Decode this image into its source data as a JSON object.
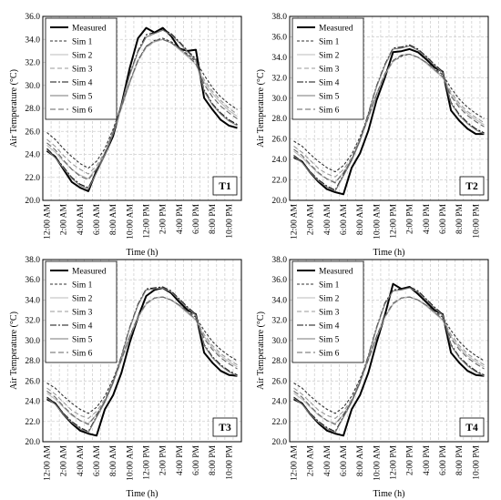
{
  "chart_data": [
    {
      "type": "line",
      "panel_label": "T1",
      "xlabel": "Time (h)",
      "ylabel": "Air Temperature (°C)",
      "ylim": [
        20.0,
        36.0
      ],
      "yticks": [
        "20.0",
        "22.0",
        "24.0",
        "26.0",
        "28.0",
        "30.0",
        "32.0",
        "34.0",
        "36.0"
      ],
      "xtick_labels": [
        "12:00 AM",
        "2:00 AM",
        "4:00 AM",
        "6:00 AM",
        "8:00 AM",
        "10:00 AM",
        "12:00 PM",
        "2:00 PM",
        "4:00 PM",
        "6:00 PM",
        "8:00 PM",
        "10:00 PM"
      ],
      "x_hours": [
        0,
        1,
        2,
        3,
        4,
        5,
        6,
        7,
        8,
        9,
        10,
        11,
        12,
        13,
        14,
        15,
        16,
        17,
        18,
        19,
        20,
        21,
        22,
        23
      ],
      "grid": true,
      "legend_position": "top-left",
      "series": [
        {
          "name": "Measured",
          "style": "measured",
          "values": [
            24.3,
            23.8,
            22.7,
            21.6,
            21.1,
            20.8,
            22.6,
            24.0,
            25.6,
            28.3,
            31.5,
            34.1,
            35.0,
            34.6,
            35.0,
            34.3,
            33.2,
            33.0,
            33.1,
            28.9,
            27.9,
            27.0,
            26.5,
            26.3
          ]
        },
        {
          "name": "Sim 1",
          "style": "sim1",
          "values": [
            25.9,
            25.3,
            24.5,
            23.8,
            23.2,
            22.8,
            23.4,
            24.5,
            26.2,
            28.2,
            30.3,
            32.2,
            33.4,
            33.9,
            34.1,
            33.8,
            33.3,
            32.7,
            32.1,
            30.9,
            29.8,
            29.0,
            28.4,
            27.9
          ]
        },
        {
          "name": "Sim 2",
          "style": "sim2",
          "values": [
            24.8,
            24.2,
            23.4,
            22.7,
            22.2,
            21.9,
            22.8,
            24.0,
            25.8,
            28.0,
            30.2,
            32.1,
            33.3,
            33.8,
            34.0,
            33.7,
            33.1,
            32.5,
            31.8,
            30.3,
            29.3,
            28.5,
            27.8,
            27.3
          ]
        },
        {
          "name": "Sim 3",
          "style": "sim3",
          "values": [
            25.3,
            24.7,
            23.9,
            23.2,
            22.7,
            22.3,
            23.0,
            24.2,
            26.0,
            28.1,
            30.2,
            32.1,
            33.3,
            33.8,
            34.0,
            33.7,
            33.2,
            32.6,
            31.9,
            30.5,
            29.5,
            28.7,
            28.0,
            27.5
          ]
        },
        {
          "name": "Sim 4",
          "style": "sim4",
          "values": [
            24.5,
            23.8,
            22.9,
            22.0,
            21.4,
            21.1,
            22.5,
            24.0,
            25.9,
            28.4,
            31.0,
            33.0,
            34.4,
            34.6,
            34.9,
            34.5,
            33.8,
            33.0,
            32.3,
            29.6,
            28.4,
            27.6,
            27.0,
            26.6
          ]
        },
        {
          "name": "Sim 5",
          "style": "sim5",
          "values": [
            24.4,
            23.7,
            22.8,
            21.9,
            21.3,
            21.0,
            22.4,
            23.9,
            25.8,
            28.3,
            30.9,
            32.9,
            34.2,
            34.5,
            34.8,
            34.4,
            33.7,
            32.9,
            32.2,
            29.5,
            28.3,
            27.5,
            26.9,
            26.5
          ]
        },
        {
          "name": "Sim 6",
          "style": "sim6",
          "values": [
            25.0,
            24.4,
            23.5,
            22.7,
            22.1,
            21.8,
            22.7,
            24.0,
            25.9,
            28.1,
            30.3,
            32.2,
            33.4,
            33.9,
            34.0,
            33.7,
            33.2,
            32.6,
            31.9,
            30.1,
            29.0,
            28.2,
            27.6,
            27.1
          ]
        }
      ]
    },
    {
      "type": "line",
      "panel_label": "T2",
      "xlabel": "Time (h)",
      "ylabel": "Air Temperature (°C)",
      "ylim": [
        20.0,
        38.0
      ],
      "yticks": [
        "20.0",
        "22.0",
        "24.0",
        "26.0",
        "28.0",
        "30.0",
        "32.0",
        "34.0",
        "36.0",
        "38.0"
      ],
      "xtick_labels": [
        "12:00 AM",
        "2:00 AM",
        "4:00 AM",
        "6:00 AM",
        "8:00 AM",
        "10:00 AM",
        "12:00 PM",
        "2:00 PM",
        "4:00 PM",
        "6:00 PM",
        "8:00 PM",
        "10:00 PM"
      ],
      "x_hours": [
        0,
        1,
        2,
        3,
        4,
        5,
        6,
        7,
        8,
        9,
        10,
        11,
        12,
        13,
        14,
        15,
        16,
        17,
        18,
        19,
        20,
        21,
        22,
        23
      ],
      "grid": true,
      "legend_position": "top-left",
      "series": [
        {
          "name": "Measured",
          "style": "measured",
          "values": [
            24.2,
            23.8,
            22.7,
            21.8,
            21.1,
            20.8,
            20.6,
            23.2,
            24.6,
            26.8,
            29.8,
            32.0,
            34.5,
            34.6,
            34.8,
            34.5,
            33.8,
            33.0,
            32.6,
            28.8,
            27.8,
            27.0,
            26.5,
            26.5
          ]
        },
        {
          "name": "Sim 1",
          "style": "sim1",
          "values": [
            25.8,
            25.3,
            24.5,
            23.8,
            23.2,
            22.8,
            23.4,
            24.5,
            26.2,
            28.2,
            30.4,
            32.3,
            33.6,
            34.1,
            34.3,
            34.0,
            33.5,
            32.9,
            32.3,
            31.0,
            29.9,
            29.1,
            28.5,
            28.0
          ]
        },
        {
          "name": "Sim 2",
          "style": "sim2",
          "values": [
            24.8,
            24.2,
            23.4,
            22.6,
            22.1,
            21.8,
            22.7,
            24.0,
            25.8,
            28.0,
            30.3,
            32.3,
            33.6,
            34.2,
            34.3,
            34.0,
            33.4,
            32.7,
            32.0,
            30.4,
            29.3,
            28.5,
            27.9,
            27.4
          ]
        },
        {
          "name": "Sim 3",
          "style": "sim3",
          "values": [
            25.3,
            24.7,
            23.9,
            23.1,
            22.6,
            22.3,
            23.0,
            24.2,
            26.0,
            28.1,
            30.3,
            32.3,
            33.6,
            34.2,
            34.3,
            34.0,
            33.5,
            32.8,
            32.1,
            30.6,
            29.5,
            28.7,
            28.1,
            27.6
          ]
        },
        {
          "name": "Sim 4",
          "style": "sim4",
          "values": [
            24.4,
            23.8,
            22.8,
            22.0,
            21.4,
            21.0,
            22.5,
            24.0,
            25.9,
            28.5,
            31.2,
            33.3,
            34.9,
            35.0,
            35.2,
            34.8,
            34.1,
            33.3,
            32.6,
            29.6,
            28.4,
            27.6,
            27.0,
            26.6
          ]
        },
        {
          "name": "Sim 5",
          "style": "sim5",
          "values": [
            24.3,
            23.7,
            22.7,
            21.9,
            21.3,
            20.9,
            22.4,
            23.9,
            25.8,
            28.4,
            31.1,
            33.2,
            34.8,
            34.9,
            35.1,
            34.7,
            34.0,
            33.2,
            32.5,
            29.5,
            28.3,
            27.5,
            26.9,
            26.5
          ]
        },
        {
          "name": "Sim 6",
          "style": "sim6",
          "values": [
            25.0,
            24.4,
            23.5,
            22.7,
            22.1,
            21.7,
            22.7,
            24.0,
            25.9,
            28.1,
            30.4,
            32.4,
            33.7,
            34.2,
            34.3,
            34.0,
            33.5,
            32.8,
            32.1,
            30.2,
            29.1,
            28.3,
            27.7,
            27.2
          ]
        }
      ]
    },
    {
      "type": "line",
      "panel_label": "T3",
      "xlabel": "Time (h)",
      "ylabel": "Air Temperature (°C)",
      "ylim": [
        20.0,
        38.0
      ],
      "yticks": [
        "20.0",
        "22.0",
        "24.0",
        "26.0",
        "28.0",
        "30.0",
        "32.0",
        "34.0",
        "36.0",
        "38.0"
      ],
      "xtick_labels": [
        "12:00 AM",
        "2:00 AM",
        "4:00 AM",
        "6:00 AM",
        "8:00 AM",
        "10:00 AM",
        "12:00 PM",
        "2:00 PM",
        "4:00 PM",
        "6:00 PM",
        "8:00 PM",
        "10:00 PM"
      ],
      "x_hours": [
        0,
        1,
        2,
        3,
        4,
        5,
        6,
        7,
        8,
        9,
        10,
        11,
        12,
        13,
        14,
        15,
        16,
        17,
        18,
        19,
        20,
        21,
        22,
        23
      ],
      "grid": true,
      "legend_position": "top-left",
      "series": [
        {
          "name": "Measured",
          "style": "measured",
          "values": [
            24.2,
            23.8,
            22.7,
            21.8,
            21.1,
            20.8,
            20.6,
            23.2,
            24.6,
            26.8,
            29.8,
            32.3,
            34.4,
            35.0,
            35.2,
            34.7,
            33.8,
            33.0,
            32.6,
            28.8,
            27.8,
            27.0,
            26.6,
            26.5
          ]
        },
        {
          "name": "Sim 1",
          "style": "sim1",
          "values": [
            25.8,
            25.3,
            24.5,
            23.8,
            23.2,
            22.8,
            23.4,
            24.5,
            26.2,
            28.2,
            30.4,
            32.3,
            33.6,
            34.2,
            34.3,
            34.0,
            33.5,
            32.9,
            32.3,
            31.0,
            29.9,
            29.1,
            28.5,
            28.0
          ]
        },
        {
          "name": "Sim 2",
          "style": "sim2",
          "values": [
            24.8,
            24.2,
            23.4,
            22.6,
            22.1,
            21.8,
            22.7,
            24.0,
            25.8,
            28.0,
            30.3,
            32.3,
            33.6,
            34.2,
            34.3,
            34.0,
            33.4,
            32.7,
            32.0,
            30.4,
            29.3,
            28.5,
            27.9,
            27.4
          ]
        },
        {
          "name": "Sim 3",
          "style": "sim3",
          "values": [
            25.3,
            24.7,
            23.9,
            23.1,
            22.6,
            22.3,
            23.0,
            24.2,
            26.0,
            28.1,
            30.3,
            32.3,
            33.6,
            34.2,
            34.3,
            34.0,
            33.5,
            32.8,
            32.1,
            30.6,
            29.5,
            28.7,
            28.1,
            27.6
          ]
        },
        {
          "name": "Sim 4",
          "style": "sim4",
          "values": [
            24.4,
            23.8,
            22.8,
            22.0,
            21.4,
            21.0,
            22.5,
            24.0,
            25.9,
            28.5,
            31.3,
            33.6,
            35.1,
            35.2,
            35.3,
            34.9,
            34.1,
            33.3,
            32.6,
            29.6,
            28.4,
            27.6,
            27.0,
            26.6
          ]
        },
        {
          "name": "Sim 5",
          "style": "sim5",
          "values": [
            24.3,
            23.7,
            22.7,
            21.9,
            21.3,
            20.9,
            22.4,
            23.9,
            25.8,
            28.4,
            31.2,
            33.5,
            35.0,
            35.1,
            35.2,
            34.8,
            34.0,
            33.2,
            32.5,
            29.5,
            28.3,
            27.5,
            26.9,
            26.5
          ]
        },
        {
          "name": "Sim 6",
          "style": "sim6",
          "values": [
            25.0,
            24.4,
            23.5,
            22.7,
            22.1,
            21.7,
            22.7,
            24.0,
            25.9,
            28.1,
            30.4,
            32.4,
            33.7,
            34.2,
            34.3,
            34.0,
            33.5,
            32.8,
            32.1,
            30.2,
            29.1,
            28.3,
            27.7,
            27.2
          ]
        }
      ]
    },
    {
      "type": "line",
      "panel_label": "T4",
      "xlabel": "Time (h)",
      "ylabel": "Air Temperature (°C)",
      "ylim": [
        20.0,
        38.0
      ],
      "yticks": [
        "20.0",
        "22.0",
        "24.0",
        "26.0",
        "28.0",
        "30.0",
        "32.0",
        "34.0",
        "36.0",
        "38.0"
      ],
      "xtick_labels": [
        "12:00 AM",
        "2:00 AM",
        "4:00 AM",
        "6:00 AM",
        "8:00 AM",
        "10:00 AM",
        "12:00 PM",
        "2:00 PM",
        "4:00 PM",
        "6:00 PM",
        "8:00 PM",
        "10:00 PM"
      ],
      "x_hours": [
        0,
        1,
        2,
        3,
        4,
        5,
        6,
        7,
        8,
        9,
        10,
        11,
        12,
        13,
        14,
        15,
        16,
        17,
        18,
        19,
        20,
        21,
        22,
        23
      ],
      "grid": true,
      "legend_position": "top-left",
      "series": [
        {
          "name": "Measured",
          "style": "measured",
          "values": [
            24.2,
            23.8,
            22.7,
            21.8,
            21.1,
            20.8,
            20.6,
            23.2,
            24.6,
            26.8,
            29.8,
            32.5,
            35.6,
            35.1,
            35.3,
            34.6,
            33.8,
            33.0,
            32.6,
            28.8,
            27.8,
            27.0,
            26.6,
            26.5
          ]
        },
        {
          "name": "Sim 1",
          "style": "sim1",
          "values": [
            25.8,
            25.3,
            24.5,
            23.8,
            23.2,
            22.8,
            23.4,
            24.5,
            26.2,
            28.2,
            30.4,
            32.3,
            33.6,
            34.2,
            34.3,
            34.0,
            33.5,
            32.9,
            32.3,
            31.0,
            29.9,
            29.1,
            28.5,
            28.0
          ]
        },
        {
          "name": "Sim 2",
          "style": "sim2",
          "values": [
            24.8,
            24.2,
            23.4,
            22.6,
            22.1,
            21.8,
            22.7,
            24.0,
            25.8,
            28.0,
            30.3,
            32.3,
            33.6,
            34.2,
            34.3,
            34.0,
            33.4,
            32.7,
            32.0,
            30.4,
            29.3,
            28.5,
            27.9,
            27.4
          ]
        },
        {
          "name": "Sim 3",
          "style": "sim3",
          "values": [
            25.3,
            24.7,
            23.9,
            23.1,
            22.6,
            22.3,
            23.0,
            24.2,
            26.0,
            28.1,
            30.3,
            32.3,
            33.6,
            34.2,
            34.3,
            34.0,
            33.5,
            32.8,
            32.1,
            30.6,
            29.5,
            28.7,
            28.1,
            27.6
          ]
        },
        {
          "name": "Sim 4",
          "style": "sim4",
          "values": [
            24.4,
            23.8,
            22.8,
            22.0,
            21.4,
            21.0,
            22.5,
            24.0,
            25.9,
            28.5,
            31.3,
            33.7,
            35.0,
            35.1,
            35.3,
            34.9,
            34.1,
            33.3,
            32.6,
            29.6,
            28.4,
            27.6,
            27.0,
            26.6
          ]
        },
        {
          "name": "Sim 5",
          "style": "sim5",
          "values": [
            24.3,
            23.7,
            22.7,
            21.9,
            21.3,
            20.9,
            22.4,
            23.9,
            25.8,
            28.4,
            31.2,
            33.6,
            34.9,
            35.0,
            35.2,
            34.8,
            34.0,
            33.2,
            32.5,
            29.5,
            28.3,
            27.5,
            26.9,
            26.5
          ]
        },
        {
          "name": "Sim 6",
          "style": "sim6",
          "values": [
            25.0,
            24.4,
            23.5,
            22.7,
            22.1,
            21.7,
            22.7,
            24.0,
            25.9,
            28.1,
            30.4,
            32.4,
            33.7,
            34.2,
            34.3,
            34.0,
            33.5,
            32.8,
            32.1,
            30.2,
            29.1,
            28.3,
            27.7,
            27.2
          ]
        }
      ]
    }
  ],
  "series_styles": {
    "measured": {
      "color": "#000000",
      "dash": ""
    },
    "sim1": {
      "color": "#333333",
      "dash": "3,2"
    },
    "sim2": {
      "color": "#bbbbbb",
      "dash": ""
    },
    "sim3": {
      "color": "#999999",
      "dash": "5,3"
    },
    "sim4": {
      "color": "#111111",
      "dash": "7,2,2,2"
    },
    "sim5": {
      "color": "#777777",
      "dash": ""
    },
    "sim6": {
      "color": "#666666",
      "dash": "6,3"
    }
  }
}
